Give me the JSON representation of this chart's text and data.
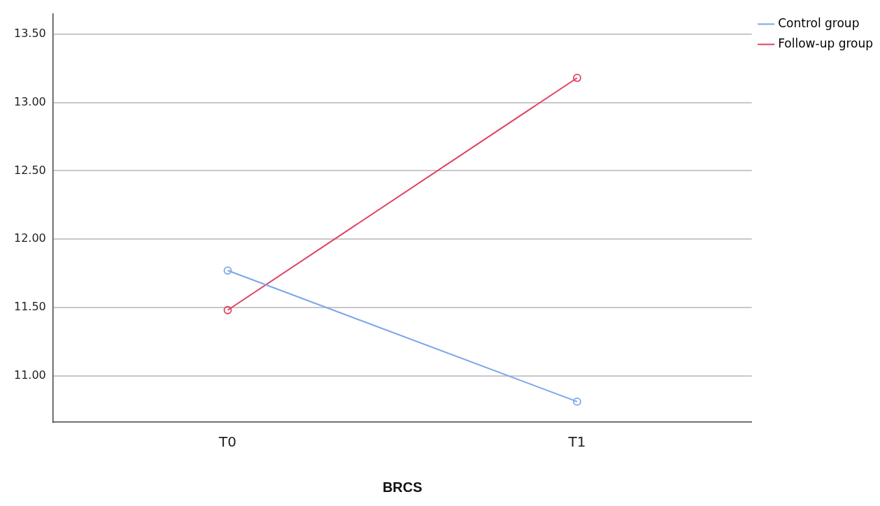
{
  "chart_data": {
    "type": "line",
    "xlabel": "BRCS",
    "categories": [
      "T0",
      "T1"
    ],
    "series": [
      {
        "name": "Control group",
        "color": "#7aa7e8",
        "values": [
          11.77,
          10.81
        ]
      },
      {
        "name": "Follow-up group",
        "color": "#e0405f",
        "values": [
          11.48,
          13.18
        ]
      }
    ],
    "ylim": [
      10.66,
      13.65
    ],
    "yticks": [
      {
        "value": 11,
        "label": "11.00"
      },
      {
        "value": 11.5,
        "label": "11.50"
      },
      {
        "value": 12,
        "label": "12.00"
      },
      {
        "value": 12.5,
        "label": "12.50"
      },
      {
        "value": 13,
        "label": "13.00"
      },
      {
        "value": 13.5,
        "label": "13.50"
      }
    ],
    "grid": "y",
    "legend": "right",
    "marker": "circle",
    "line_style": "solid"
  }
}
